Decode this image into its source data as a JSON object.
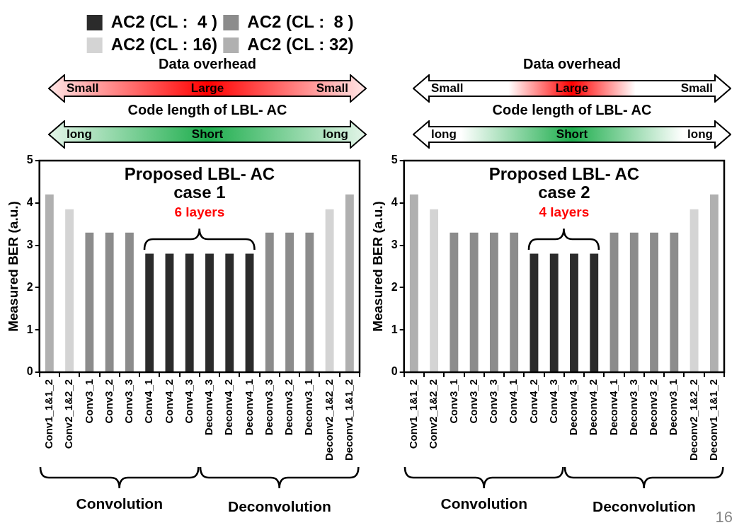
{
  "chart_data": [
    {
      "type": "bar",
      "title": "Proposed LBL- AC\ncase 1",
      "ylabel": "Measured BER (a.u.)",
      "categories": [
        "Conv1_1&1_2",
        "Conv2_1&2_2",
        "Conv3_1",
        "Conv3_2",
        "Conv3_3",
        "Conv4_1",
        "Conv4_2",
        "Conv4_3",
        "Deconv4_3",
        "Deconv4_2",
        "Deconv4_1",
        "Deconv3_3",
        "Deconv3_2",
        "Deconv3_1",
        "Deconv2_1&2_2",
        "Deconv1_1&1_2"
      ],
      "series": [
        {
          "name": "AC2 (CL :  4 )",
          "color": "#2b2b2b",
          "values": [
            null,
            null,
            null,
            null,
            null,
            2.8,
            2.8,
            2.8,
            2.8,
            2.8,
            2.8,
            null,
            null,
            null,
            null,
            null
          ]
        },
        {
          "name": "AC2 (CL :  8 )",
          "color": "#8c8c8c",
          "values": [
            null,
            null,
            3.3,
            3.3,
            3.3,
            null,
            null,
            null,
            null,
            null,
            null,
            3.3,
            3.3,
            3.3,
            null,
            null
          ]
        },
        {
          "name": "AC2 (CL : 16)",
          "color": "#d4d4d4",
          "values": [
            null,
            3.85,
            null,
            null,
            null,
            null,
            null,
            null,
            null,
            null,
            null,
            null,
            null,
            null,
            3.85,
            null
          ]
        },
        {
          "name": "AC2 (CL : 32)",
          "color": "#b0b0b0",
          "values": [
            4.2,
            null,
            null,
            null,
            null,
            null,
            null,
            null,
            null,
            null,
            null,
            null,
            null,
            null,
            null,
            4.2
          ]
        }
      ],
      "stacked": true,
      "ylim": [
        0,
        5
      ],
      "yticks": [
        0,
        1,
        2,
        3,
        4,
        5
      ],
      "legend": "top",
      "annotations": [
        "Data overhead",
        "Small",
        "Large",
        "Small",
        "Code length of LBL- AC",
        "long",
        "Short",
        "long",
        "6 layers",
        "Convolution",
        "Deconvolution"
      ]
    },
    {
      "type": "bar",
      "title": "Proposed LBL- AC\ncase 2",
      "ylabel": "Measured BER (a.u.)",
      "categories": [
        "Conv1_1&1_2",
        "Conv2_1&2_2",
        "Conv3_1",
        "Conv3_2",
        "Conv3_3",
        "Conv4_1",
        "Conv4_2",
        "Conv4_3",
        "Deconv4_3",
        "Deconv4_2",
        "Deconv4_1",
        "Deconv3_3",
        "Deconv3_2",
        "Deconv3_1",
        "Deconv2_1&2_2",
        "Deconv1_1&1_2"
      ],
      "series": [
        {
          "color": "#2b2b2b",
          "values": [
            null,
            null,
            null,
            null,
            null,
            null,
            2.8,
            2.8,
            2.8,
            2.8,
            null,
            null,
            null,
            null,
            null,
            null
          ]
        },
        {
          "color": "#8c8c8c",
          "values": [
            null,
            null,
            3.3,
            3.3,
            3.3,
            3.3,
            null,
            null,
            null,
            null,
            3.3,
            3.3,
            3.3,
            3.3,
            null,
            null
          ]
        },
        {
          "color": "#d4d4d4",
          "values": [
            null,
            3.85,
            null,
            null,
            null,
            null,
            null,
            null,
            null,
            null,
            null,
            null,
            null,
            null,
            3.85,
            null
          ]
        },
        {
          "color": "#b0b0b0",
          "values": [
            4.2,
            null,
            null,
            null,
            null,
            null,
            null,
            null,
            null,
            null,
            null,
            null,
            null,
            null,
            null,
            4.2
          ]
        }
      ],
      "stacked": true,
      "ylim": [
        0,
        5
      ],
      "yticks": [
        0,
        1,
        2,
        3,
        4,
        5
      ],
      "annotations": [
        "Data overhead",
        "Small",
        "Large",
        "Small",
        "Code length of LBL- AC",
        "long",
        "Short",
        "long",
        "4 layers",
        "Convolution",
        "Deconvolution",
        "16"
      ]
    }
  ]
}
